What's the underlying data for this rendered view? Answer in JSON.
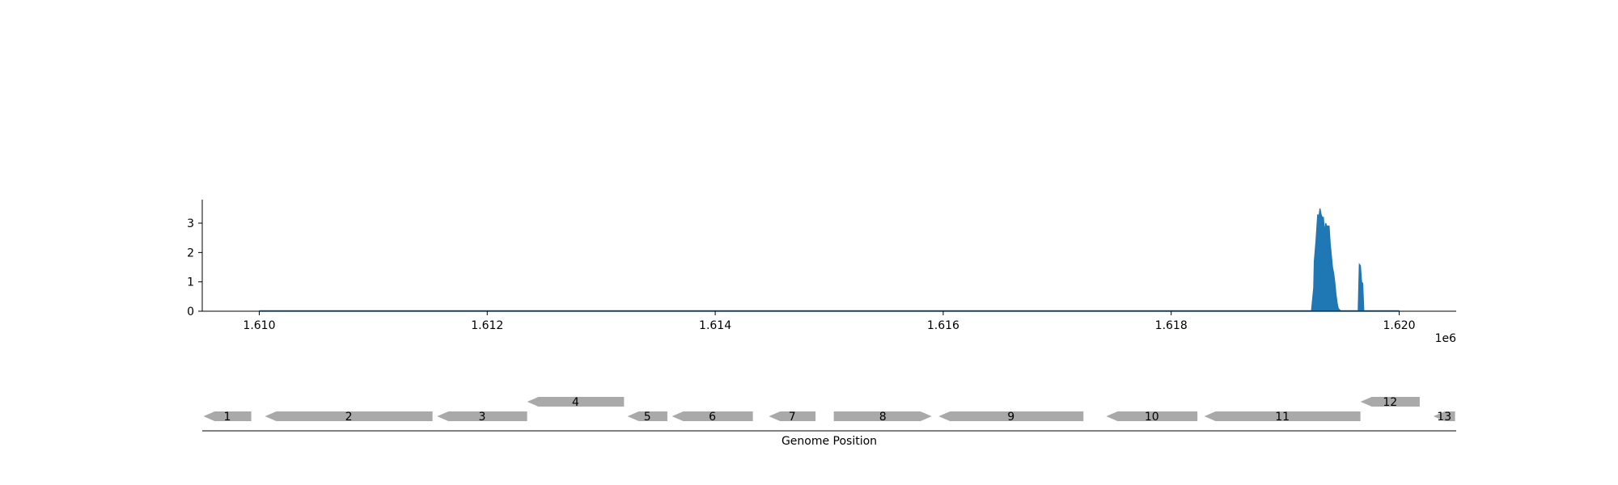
{
  "chart_data": [
    {
      "type": "area",
      "title": "",
      "xlabel": "",
      "ylabel": "",
      "xlim": [
        1609500,
        1620500
      ],
      "ylim": [
        0,
        3.8
      ],
      "x_ticks": [
        1610000,
        1612000,
        1614000,
        1616000,
        1618000,
        1620000
      ],
      "x_tick_labels": [
        "1.610",
        "1.612",
        "1.614",
        "1.616",
        "1.618",
        "1.620"
      ],
      "x_offset_label": "1e6",
      "y_ticks": [
        0,
        1,
        2,
        3
      ],
      "y_tick_labels": [
        "0",
        "1",
        "2",
        "3"
      ],
      "grid": false,
      "color": "#1f77b4",
      "series": [
        {
          "x": [
            1610000,
            1619230,
            1619250,
            1619255,
            1619270,
            1619285,
            1619295,
            1619305,
            1619315,
            1619325,
            1619335,
            1619345,
            1619355,
            1619365,
            1619375,
            1619385,
            1619395,
            1619405,
            1619415,
            1619425,
            1619435,
            1619445,
            1619455,
            1619465,
            1619475,
            1619485,
            1619500,
            1619520,
            1619640,
            1619650,
            1619660,
            1619670,
            1619680,
            1619690,
            1620000
          ],
          "y": [
            0,
            0,
            0.8,
            1.7,
            2.4,
            3.3,
            3.2,
            3.5,
            3.3,
            3.2,
            3.2,
            2.7,
            3.0,
            2.9,
            2.9,
            2.9,
            2.3,
            1.9,
            1.5,
            1.3,
            1.0,
            0.6,
            0.3,
            0.1,
            0.05,
            0.02,
            0,
            0,
            0,
            1.6,
            1.55,
            1.0,
            0.95,
            0,
            0
          ]
        }
      ]
    },
    {
      "type": "gene-track",
      "xlabel": "Genome Position",
      "xlim": [
        1609500,
        1620500
      ],
      "genes": [
        {
          "label": "1",
          "start": 1609510,
          "end": 1609930,
          "strand": -1,
          "row": 0
        },
        {
          "label": "2",
          "start": 1610050,
          "end": 1611520,
          "strand": -1,
          "row": 0
        },
        {
          "label": "3",
          "start": 1611560,
          "end": 1612350,
          "strand": -1,
          "row": 0
        },
        {
          "label": "4",
          "start": 1612350,
          "end": 1613200,
          "strand": -1,
          "row": 1
        },
        {
          "label": "5",
          "start": 1613230,
          "end": 1613580,
          "strand": -1,
          "row": 0
        },
        {
          "label": "6",
          "start": 1613620,
          "end": 1614330,
          "strand": -1,
          "row": 0
        },
        {
          "label": "7",
          "start": 1614470,
          "end": 1614880,
          "strand": -1,
          "row": 0
        },
        {
          "label": "8",
          "start": 1615040,
          "end": 1615900,
          "strand": 1,
          "row": 0
        },
        {
          "label": "9",
          "start": 1615960,
          "end": 1617230,
          "strand": -1,
          "row": 0
        },
        {
          "label": "10",
          "start": 1617430,
          "end": 1618230,
          "strand": -1,
          "row": 0
        },
        {
          "label": "11",
          "start": 1618290,
          "end": 1619660,
          "strand": -1,
          "row": 0
        },
        {
          "label": "12",
          "start": 1619660,
          "end": 1620180,
          "strand": -1,
          "row": 1
        },
        {
          "label": "13",
          "start": 1620300,
          "end": 1620490,
          "strand": -1,
          "row": 0
        }
      ],
      "gene_color": "#a9a9a9"
    }
  ]
}
